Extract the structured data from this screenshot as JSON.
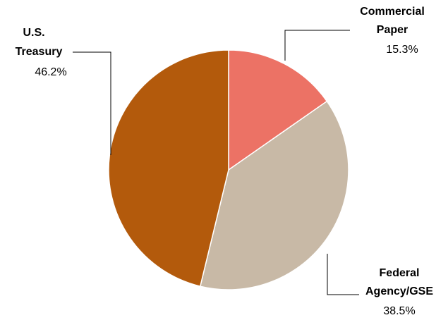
{
  "chart_data": {
    "type": "pie",
    "title": "",
    "start_angle_deg": 0,
    "direction": "clockwise",
    "slices": [
      {
        "name_lines": [
          "Commercial",
          "Paper"
        ],
        "value": 15.3,
        "value_label": "15.3%",
        "color": "#ec7265"
      },
      {
        "name_lines": [
          "Federal",
          "Agency/GSE"
        ],
        "value": 38.5,
        "value_label": "38.5%",
        "color": "#c8b9a6"
      },
      {
        "name_lines": [
          "U.S.",
          "Treasury"
        ],
        "value": 46.2,
        "value_label": "46.2%",
        "color": "#b35a0c"
      }
    ]
  }
}
